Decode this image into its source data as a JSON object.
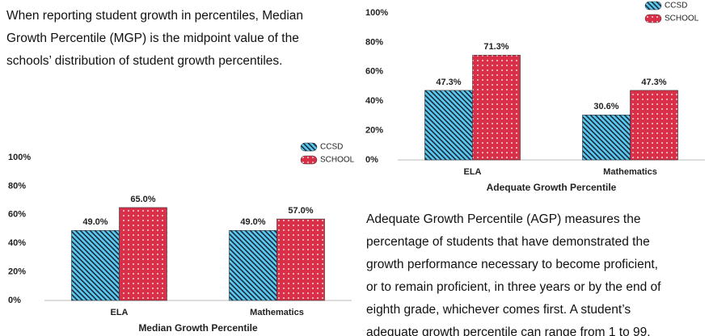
{
  "paragraphs": [
    [
      "When reporting student growth in percentiles, Median",
      "Growth Percentile (MGP) is the midpoint value of the",
      "schools’ distribution of student growth percentiles."
    ],
    [
      "Adequate Growth Percentile (AGP) measures the",
      "percentage of students that have demonstrated the",
      "growth performance necessary to become proficient,",
      "or to remain proficient, in three years or by the end of",
      "eighth grade, whichever comes first. A student’s",
      "adequate growth percentile can range from 1 to 99."
    ]
  ],
  "chart_data": [
    {
      "type": "bar",
      "xlabel": "Median Growth Percentile",
      "categories": [
        "ELA",
        "Mathematics"
      ],
      "series": [
        {
          "name": "CCSD",
          "color": "#5bc8f0",
          "pattern": "hatch",
          "values": [
            49.0,
            49.0
          ],
          "value_labels": [
            "49.0%",
            "49.0%"
          ]
        },
        {
          "name": "SCHOOL",
          "color": "#d9304a",
          "pattern": "dots",
          "values": [
            65.0,
            57.0
          ],
          "value_labels": [
            "65.0%",
            "57.0%"
          ]
        }
      ],
      "ylim": [
        0,
        100
      ],
      "yticks": [
        {
          "value": 0,
          "label": "0%"
        },
        {
          "value": 20,
          "label": "20%"
        },
        {
          "value": 40,
          "label": "40%"
        },
        {
          "value": 60,
          "label": "60%"
        },
        {
          "value": 80,
          "label": "80%"
        },
        {
          "value": 100,
          "label": "100%"
        }
      ],
      "legend": "top-right"
    },
    {
      "type": "bar",
      "xlabel": "Adequate Growth Percentile",
      "categories": [
        "ELA",
        "Mathematics"
      ],
      "series": [
        {
          "name": "CCSD",
          "color": "#5bc8f0",
          "pattern": "hatch",
          "values": [
            47.3,
            30.6
          ],
          "value_labels": [
            "47.3%",
            "30.6%"
          ]
        },
        {
          "name": "SCHOOL",
          "color": "#d9304a",
          "pattern": "dots",
          "values": [
            71.3,
            47.3
          ],
          "value_labels": [
            "71.3%",
            "47.3%"
          ]
        }
      ],
      "ylim": [
        0,
        100
      ],
      "yticks": [
        {
          "value": 0,
          "label": "0%"
        },
        {
          "value": 20,
          "label": "20%"
        },
        {
          "value": 40,
          "label": "40%"
        },
        {
          "value": 60,
          "label": "60%"
        },
        {
          "value": 80,
          "label": "80%"
        },
        {
          "value": 100,
          "label": "100%"
        }
      ],
      "legend": "top-right"
    }
  ]
}
